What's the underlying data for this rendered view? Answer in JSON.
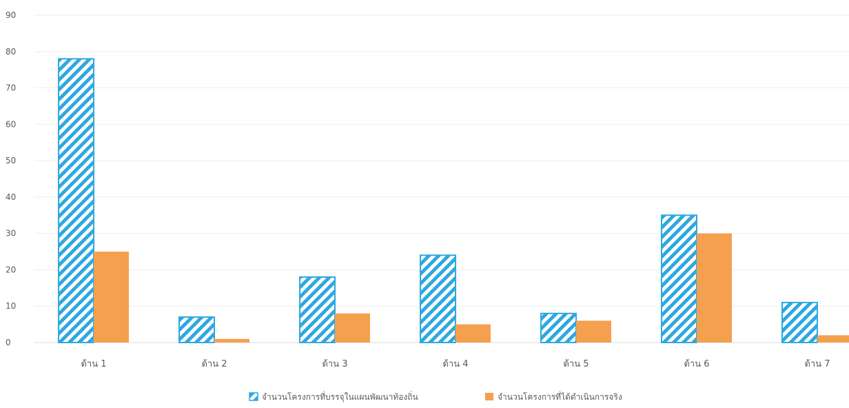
{
  "chart_data": {
    "type": "bar",
    "title": "",
    "xlabel": "",
    "ylabel": "",
    "ylim": [
      0,
      90
    ],
    "yticks": [
      0,
      10,
      20,
      30,
      40,
      50,
      60,
      70,
      80,
      90
    ],
    "grid": true,
    "legend_position": "bottom",
    "categories": [
      "ด้าน 1",
      "ด้าน 2",
      "ด้าน 3",
      "ด้าน 4",
      "ด้าน 5",
      "ด้าน 6",
      "ด้าน 7"
    ],
    "series": [
      {
        "name": "จำนวนโครงการที่บรรจุในแผนพัฒนาท้องถิ่น",
        "values": [
          78,
          7,
          18,
          24,
          8,
          35,
          11
        ],
        "color": "#2ea8e0",
        "style": "hatched"
      },
      {
        "name": "จำนวนโครงการที่ได้ดำเนินการจริง",
        "values": [
          25,
          1,
          8,
          5,
          6,
          30,
          2
        ],
        "color": "#f4a04f",
        "style": "solid"
      }
    ]
  }
}
